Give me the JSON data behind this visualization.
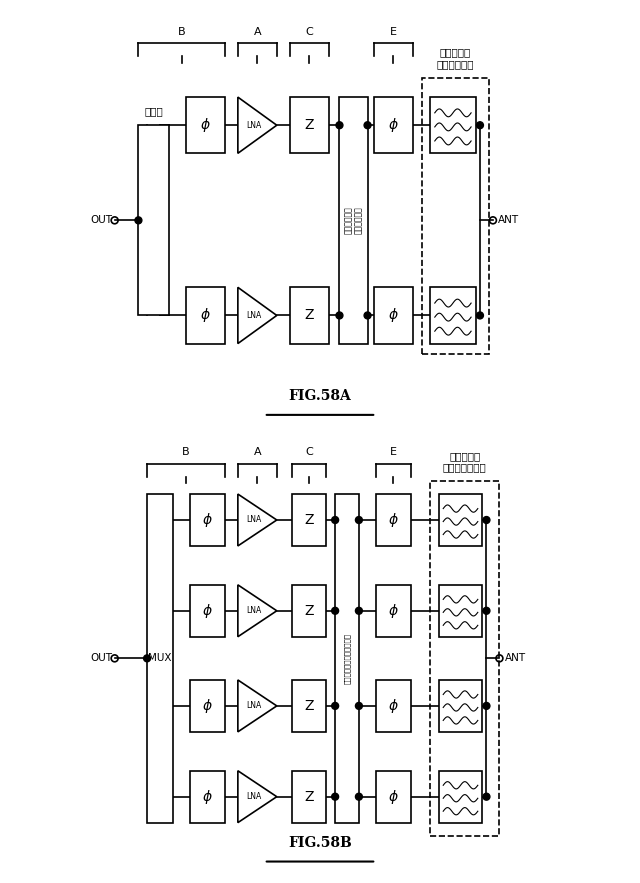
{
  "bg_color": "#ffffff",
  "line_color": "#000000",
  "fig_width": 6.4,
  "fig_height": 8.83,
  "fig58a": {
    "title": "FIG.58A",
    "label_B": "B",
    "label_A": "A",
    "label_C": "C",
    "label_E": "E",
    "label_filter": "フィルタ／\nダイプレクサ",
    "label_coupler": "結合器",
    "label_switch": "スイッチング\nネットワーク",
    "label_out": "OUT",
    "label_ant": "ANT"
  },
  "fig58b": {
    "title": "FIG.58B",
    "label_B": "B",
    "label_A": "A",
    "label_C": "C",
    "label_E": "E",
    "label_filter": "フィルタ／\nマルチプレクサ",
    "label_switch": "スイッチングネットワーク",
    "label_out": "OUT",
    "label_ant": "ANT",
    "label_mux": "MUX"
  }
}
